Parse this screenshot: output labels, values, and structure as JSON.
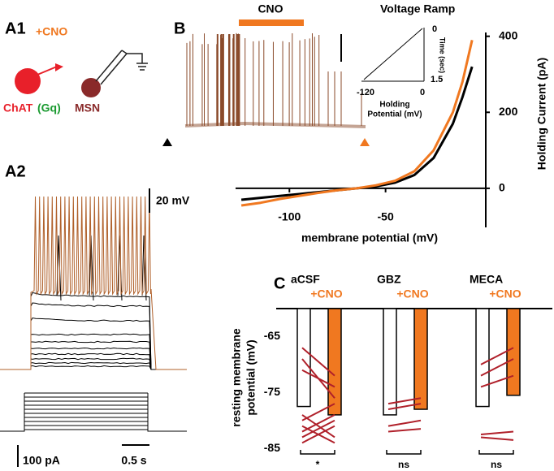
{
  "panels": {
    "a1": {
      "label": "A1",
      "cno": "+CNO",
      "chat": "ChAT",
      "gq": "(Gq)",
      "msn": "MSN"
    },
    "a2": {
      "label": "A2",
      "scale_v": "20 mV",
      "scale_i": "100 pA",
      "scale_t": "0.5 s"
    },
    "b": {
      "label": "B",
      "drug": "CNO",
      "inset_title": "Voltage Ramp",
      "inset_time_top": "0",
      "inset_time_label": "Time (sec)",
      "inset_time_bottom": "1.5",
      "inset_v_left": "-120",
      "inset_v_right": "0",
      "inset_v_label": [
        "Holding",
        "Potential (mV)"
      ]
    },
    "c": {
      "label": "C"
    }
  },
  "chart_data": [
    {
      "type": "line",
      "xlabel": "membrane potential (mV)",
      "ylabel": "Holding Current (pA)",
      "x": [
        -125,
        -115,
        -105,
        -95,
        -85,
        -75,
        -65,
        -55,
        -45,
        -35,
        -25,
        -15,
        -10,
        -5
      ],
      "series": [
        {
          "color": "#000000",
          "values": [
            -30,
            -25,
            -20,
            -15,
            -10,
            -5,
            0,
            5,
            15,
            35,
            80,
            170,
            240,
            320
          ]
        },
        {
          "color": "#f07820",
          "values": [
            -45,
            -38,
            -28,
            -20,
            -12,
            -5,
            0,
            8,
            20,
            45,
            100,
            200,
            280,
            390
          ]
        }
      ],
      "xlim": [
        -128,
        0
      ],
      "ylim": [
        -60,
        410
      ],
      "xticks": [
        -100,
        -50
      ],
      "yticks": [
        0,
        200,
        400
      ]
    },
    {
      "type": "bar",
      "ylabel": [
        "resting membrane",
        "potential (mV)"
      ],
      "categories": [
        "aCSF",
        "GBZ",
        "MECA"
      ],
      "series": [
        {
          "color": "#ffffff",
          "values": [
            -77.5,
            -79,
            -77.5
          ]
        },
        {
          "name": "+CNO",
          "color": "#f07820",
          "values": [
            -79,
            -78,
            -75.5
          ]
        }
      ],
      "pairs": [
        [
          [
            -67,
            -72
          ],
          [
            -69,
            -76
          ],
          [
            -71,
            -74
          ],
          [
            -79,
            -83
          ],
          [
            -80,
            -77
          ],
          [
            -81,
            -84
          ],
          [
            -82,
            -79
          ],
          [
            -83,
            -80
          ],
          [
            -84,
            -81
          ]
        ],
        [
          [
            -77,
            -76
          ],
          [
            -78,
            -77
          ],
          [
            -81,
            -80
          ],
          [
            -82,
            -81.5
          ]
        ],
        [
          [
            -70,
            -67
          ],
          [
            -72,
            -69
          ],
          [
            -74,
            -72
          ],
          [
            -82.5,
            -82
          ],
          [
            -83,
            -83.5
          ]
        ]
      ],
      "significance": [
        "*",
        "ns",
        "ns"
      ],
      "ylim": [
        -60,
        -87
      ],
      "yticks": [
        -65,
        -75,
        -85
      ]
    }
  ]
}
